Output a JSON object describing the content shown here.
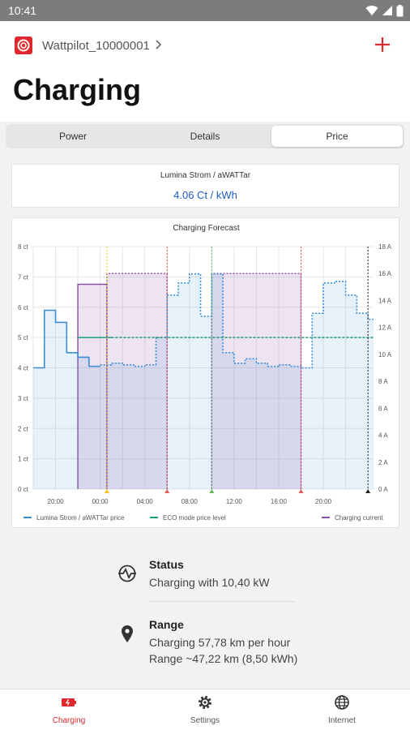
{
  "status_bar": {
    "time": "10:41",
    "icons": [
      "wifi-icon",
      "signal-icon",
      "battery-icon"
    ]
  },
  "header": {
    "device_name": "Wattpilot_10000001",
    "page_title": "Charging",
    "icons": {
      "logo": "fronius-logo-icon",
      "chevron": "chevron-right-icon",
      "add": "plus-icon"
    },
    "accent_color": "#e0282f"
  },
  "tabs": [
    {
      "label": "Power",
      "active": false
    },
    {
      "label": "Details",
      "active": false
    },
    {
      "label": "Price",
      "active": true
    }
  ],
  "price_card": {
    "provider": "Lumina Strom / aWATTar",
    "current_price": "4.06 Ct / kWh"
  },
  "chart_data": {
    "type": "line",
    "title": "Charging Forecast",
    "y_left": {
      "ticks": [
        "0 ct",
        "1 ct",
        "2 ct",
        "3 ct",
        "4 ct",
        "5 ct",
        "6 ct",
        "7 ct",
        "8 ct"
      ],
      "ylim": [
        0,
        8
      ]
    },
    "y_right": {
      "ticks": [
        "0 A",
        "2 A",
        "4 A",
        "6 A",
        "8 A",
        "10 A",
        "12 A",
        "14 A",
        "16 A",
        "18 A"
      ],
      "ylim": [
        0,
        18
      ]
    },
    "x": {
      "ticks": [
        "20:00",
        "00:00",
        "04:00",
        "08:00",
        "12:00",
        "16:00",
        "20:00"
      ],
      "start_hour": 18,
      "end_hour": 48.5
    },
    "grid": true,
    "series": [
      {
        "name": "Lumina Strom / aWATTar price",
        "color": "#3b8ed6",
        "style": "solid-then-dotted",
        "steps": [
          [
            18,
            4.0
          ],
          [
            19,
            5.9
          ],
          [
            20,
            5.5
          ],
          [
            21,
            4.5
          ],
          [
            22,
            4.35
          ],
          [
            23,
            4.05
          ],
          [
            24,
            4.1
          ],
          [
            25,
            4.15
          ],
          [
            26,
            4.1
          ],
          [
            27,
            4.05
          ],
          [
            28,
            4.1
          ],
          [
            29,
            5.0
          ],
          [
            30,
            6.4
          ],
          [
            31,
            6.8
          ],
          [
            32,
            7.1
          ],
          [
            33,
            5.7
          ],
          [
            34,
            7.1
          ],
          [
            35,
            4.5
          ],
          [
            36,
            4.15
          ],
          [
            37,
            4.3
          ],
          [
            38,
            4.15
          ],
          [
            39,
            4.05
          ],
          [
            40,
            4.1
          ],
          [
            41,
            4.05
          ],
          [
            42,
            4.0
          ],
          [
            43,
            5.8
          ],
          [
            44,
            6.8
          ],
          [
            45,
            6.85
          ],
          [
            46,
            6.4
          ],
          [
            47,
            5.8
          ],
          [
            48,
            5.6
          ]
        ],
        "end_hour": 48.5,
        "dotted_from_hour": 24
      },
      {
        "name": "ECO mode price level",
        "color": "#1a9e73",
        "style": "solid-then-dotted",
        "value": 5.0,
        "from_hour": 22,
        "dotted_from_hour": 25
      },
      {
        "name": "Charging current",
        "color": "#8d4fa6",
        "style": "step",
        "unit": "A",
        "windows": [
          [
            22,
            24.6,
            15.2
          ],
          [
            24.6,
            30,
            16.0
          ],
          [
            34,
            42,
            16.0
          ]
        ]
      }
    ],
    "markers": [
      {
        "hour": 24.6,
        "color": "#f0c419"
      },
      {
        "hour": 30.0,
        "color": "#e05a5a"
      },
      {
        "hour": 34.0,
        "color": "#5fb75f"
      },
      {
        "hour": 42.0,
        "color": "#e05a5a"
      },
      {
        "hour": 48.0,
        "color": "#222222"
      }
    ],
    "legend": "bottom"
  },
  "info": {
    "status": {
      "title": "Status",
      "text": "Charging with 10,40 kW"
    },
    "range": {
      "title": "Range",
      "text": "Charging 57,78 km per hour",
      "text2": "Range ~47,22 km (8,50 kWh)"
    }
  },
  "bottom_nav": [
    {
      "label": "Charging",
      "active": true
    },
    {
      "label": "Settings",
      "active": false
    },
    {
      "label": "Internet",
      "active": false
    }
  ]
}
